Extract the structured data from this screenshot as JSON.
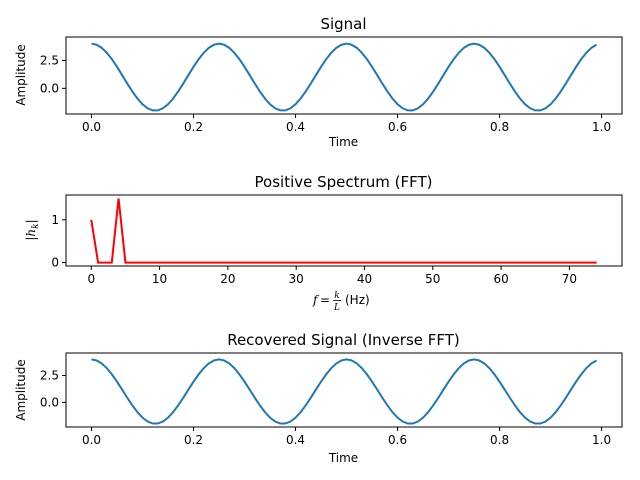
{
  "colors": {
    "signal": "#1f77b4",
    "spectrum": "#ff0000"
  },
  "chart_data": [
    {
      "type": "line",
      "title": "Signal",
      "xlabel": "Time",
      "ylabel": "Amplitude",
      "xlim": [
        -0.05,
        1.04
      ],
      "ylim": [
        -2.3,
        4.6
      ],
      "xticks": [
        0.0,
        0.2,
        0.4,
        0.6,
        0.8,
        1.0
      ],
      "xtick_labels": [
        "0.0",
        "0.2",
        "0.4",
        "0.6",
        "0.8",
        "1.0"
      ],
      "yticks": [
        0.0,
        2.5
      ],
      "ytick_labels": [
        "0.0",
        "2.5"
      ],
      "grid": false,
      "series": [
        {
          "function": "1 + 3*cos(2*pi*4*t)",
          "t_start": 0,
          "t_end": 0.99,
          "t_step": 0.01,
          "color": "#1f77b4"
        }
      ]
    },
    {
      "type": "line",
      "title": "Positive Spectrum (FFT)",
      "xlabel_prefix": "f",
      "xlabel_frac_num": "k",
      "xlabel_frac_den": "L",
      "xlabel_unit": "(Hz)",
      "ylabel": "|h_k|",
      "xlim": [
        -3.7,
        77.7
      ],
      "ylim": [
        -0.08,
        1.58
      ],
      "xticks": [
        0,
        10,
        20,
        30,
        40,
        50,
        60,
        70
      ],
      "xtick_labels": [
        "0",
        "10",
        "20",
        "30",
        "40",
        "50",
        "60",
        "70"
      ],
      "yticks": [
        0,
        1
      ],
      "ytick_labels": [
        "0",
        "1"
      ],
      "grid": false,
      "series": [
        {
          "x": [
            0,
            1,
            2,
            3,
            4,
            5,
            74
          ],
          "y": [
            1.0,
            0.0,
            0.0,
            0.0,
            1.5,
            0.0,
            0.0
          ],
          "color": "#ff0000"
        }
      ]
    },
    {
      "type": "line",
      "title": "Recovered Signal (Inverse FFT)",
      "xlabel": "Time",
      "ylabel": "Amplitude",
      "xlim": [
        -0.05,
        1.04
      ],
      "ylim": [
        -2.3,
        4.6
      ],
      "xticks": [
        0.0,
        0.2,
        0.4,
        0.6,
        0.8,
        1.0
      ],
      "xtick_labels": [
        "0.0",
        "0.2",
        "0.4",
        "0.6",
        "0.8",
        "1.0"
      ],
      "yticks": [
        0.0,
        2.5
      ],
      "ytick_labels": [
        "0.0",
        "2.5"
      ],
      "grid": false,
      "series": [
        {
          "function": "1 + 3*cos(2*pi*4*t)",
          "t_start": 0,
          "t_end": 0.99,
          "t_step": 0.01,
          "color": "#1f77b4"
        }
      ]
    }
  ]
}
